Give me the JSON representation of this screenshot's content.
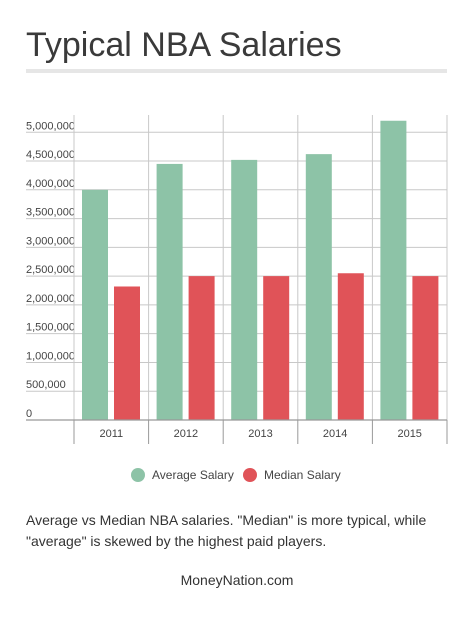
{
  "title": "Typical NBA Salaries",
  "caption": "Average vs Median NBA salaries. \"Median\" is more typical, while \"average\" is skewed by the highest paid players.",
  "footer": "MoneyNation.com",
  "colors": {
    "average": "#8dc3a7",
    "median": "#e05358",
    "grid": "#c8c8c8",
    "axis": "#999999",
    "title_rule": "#e6e6e6"
  },
  "chart_data": {
    "type": "bar",
    "title": "Typical NBA Salaries",
    "categories": [
      "2011",
      "2012",
      "2013",
      "2014",
      "2015"
    ],
    "series": [
      {
        "name": "Average Salary",
        "color": "#8dc3a7",
        "values": [
          4000000,
          4450000,
          4520000,
          4620000,
          5200000
        ]
      },
      {
        "name": "Median Salary",
        "color": "#e05358",
        "values": [
          2320000,
          2500000,
          2500000,
          2550000,
          2500000
        ]
      }
    ],
    "yticks": [
      0,
      500000,
      1000000,
      1500000,
      2000000,
      2500000,
      3000000,
      3500000,
      4000000,
      4500000,
      5000000
    ],
    "ytick_labels": [
      "0",
      "500,000",
      "1,000,000",
      "1,500,000",
      "2,000,000",
      "2,500,000",
      "3,000,000",
      "3,500,000",
      "4,000,000",
      "4,500,000",
      "5,000,000"
    ],
    "ylim": [
      0,
      5300000
    ],
    "xlabel": "",
    "ylabel": "",
    "legend_position": "bottom",
    "grid": true
  }
}
